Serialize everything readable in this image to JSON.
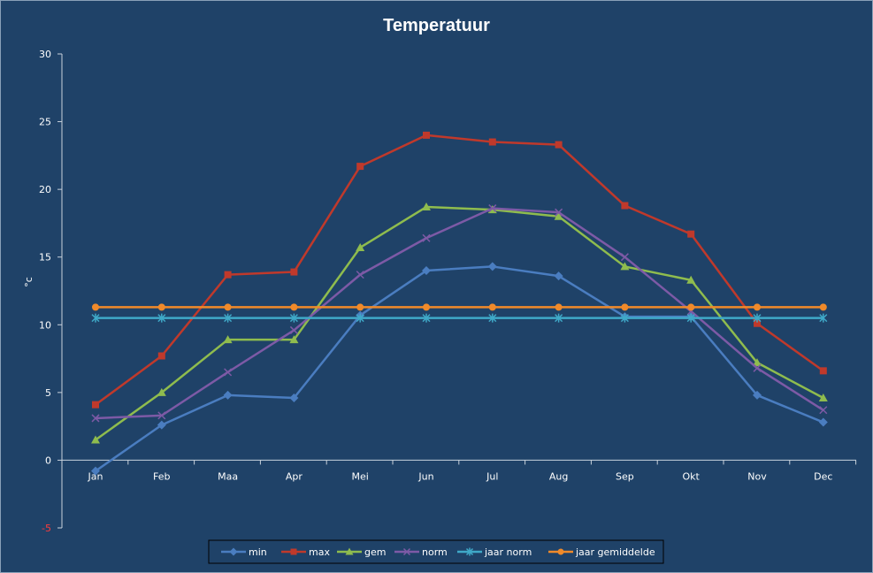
{
  "chart_data": {
    "type": "line",
    "title": "Temperatuur",
    "xlabel": "",
    "ylabel": "°c",
    "ylim": [
      -5,
      30
    ],
    "yticks": [
      -5,
      0,
      5,
      10,
      15,
      20,
      25,
      30
    ],
    "grid": false,
    "legend": "bottom",
    "categories": [
      "Jan",
      "Feb",
      "Maa",
      "Apr",
      "Mei",
      "Jun",
      "Jul",
      "Aug",
      "Sep",
      "Okt",
      "Nov",
      "Dec"
    ],
    "series": [
      {
        "name": "min",
        "color": "#4a7dc0",
        "marker": "diamond",
        "values": [
          -0.8,
          2.6,
          4.8,
          4.6,
          10.7,
          14.0,
          14.3,
          13.6,
          10.6,
          10.6,
          4.8,
          2.8
        ]
      },
      {
        "name": "max",
        "color": "#c0392b",
        "marker": "square",
        "values": [
          4.1,
          7.7,
          13.7,
          13.9,
          21.7,
          24.0,
          23.5,
          23.3,
          18.8,
          16.7,
          10.1,
          6.6
        ]
      },
      {
        "name": "gem",
        "color": "#8fbc4e",
        "marker": "triangle",
        "values": [
          1.5,
          5.0,
          8.9,
          8.9,
          15.7,
          18.7,
          18.5,
          18.0,
          14.3,
          13.3,
          7.2,
          4.6
        ]
      },
      {
        "name": "norm",
        "color": "#7d5aa6",
        "marker": "x",
        "values": [
          3.1,
          3.3,
          6.5,
          9.6,
          13.7,
          16.4,
          18.6,
          18.3,
          15.0,
          11.0,
          6.8,
          3.7
        ]
      },
      {
        "name": "jaar norm",
        "color": "#3fa9c8",
        "marker": "star",
        "values": [
          10.5,
          10.5,
          10.5,
          10.5,
          10.5,
          10.5,
          10.5,
          10.5,
          10.5,
          10.5,
          10.5,
          10.5
        ]
      },
      {
        "name": "jaar gemiddelde",
        "color": "#f08a2a",
        "marker": "circle",
        "values": [
          11.3,
          11.3,
          11.3,
          11.3,
          11.3,
          11.3,
          11.3,
          11.3,
          11.3,
          11.3,
          11.3,
          11.3
        ]
      }
    ]
  }
}
